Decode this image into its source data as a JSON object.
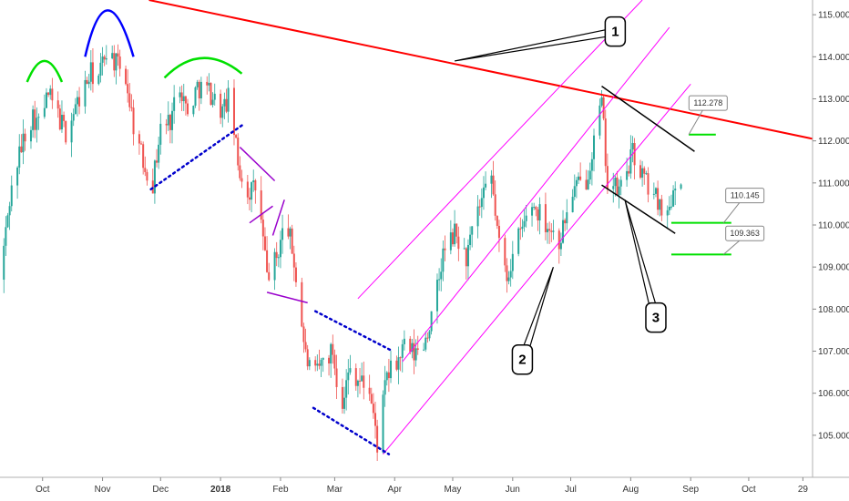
{
  "chart_data": {
    "type": "candlestick",
    "x_axis": {
      "ticks": [
        {
          "label": "Oct",
          "date": "2017-10-01",
          "bold": false
        },
        {
          "label": "Nov",
          "date": "2017-11-01",
          "bold": false
        },
        {
          "label": "Dec",
          "date": "2017-12-01",
          "bold": false
        },
        {
          "label": "2018",
          "date": "2018-01-01",
          "bold": true
        },
        {
          "label": "Feb",
          "date": "2018-02-01",
          "bold": false
        },
        {
          "label": "Mar",
          "date": "2018-03-01",
          "bold": false
        },
        {
          "label": "Apr",
          "date": "2018-04-01",
          "bold": false
        },
        {
          "label": "May",
          "date": "2018-05-01",
          "bold": false
        },
        {
          "label": "Jun",
          "date": "2018-06-01",
          "bold": false
        },
        {
          "label": "Jul",
          "date": "2018-07-01",
          "bold": false
        },
        {
          "label": "Aug",
          "date": "2018-08-01",
          "bold": false
        },
        {
          "label": "Sep",
          "date": "2018-09-01",
          "bold": false
        },
        {
          "label": "Oct",
          "date": "2018-10-01",
          "bold": false
        },
        {
          "label": "29",
          "date": "2018-10-29",
          "bold": false
        }
      ],
      "range": [
        "2017-09-09",
        "2018-11-03"
      ]
    },
    "y_axis": {
      "ticks": [
        "115.000",
        "114.000",
        "113.000",
        "112.000",
        "111.000",
        "110.000",
        "109.000",
        "108.000",
        "107.000",
        "106.000",
        "105.000"
      ],
      "range": [
        104.0,
        115.35
      ]
    },
    "price_path": [
      [
        "2017-09-09",
        108.7
      ],
      [
        "2017-09-14",
        110.6
      ],
      [
        "2017-09-18",
        111.5
      ],
      [
        "2017-09-22",
        112.2
      ],
      [
        "2017-09-26",
        112.6
      ],
      [
        "2017-09-29",
        112.4
      ],
      [
        "2017-10-04",
        113.1
      ],
      [
        "2017-10-09",
        112.6
      ],
      [
        "2017-10-13",
        112.2
      ],
      [
        "2017-10-18",
        112.8
      ],
      [
        "2017-10-23",
        113.3
      ],
      [
        "2017-10-26",
        113.6
      ],
      [
        "2017-10-30",
        113.5
      ],
      [
        "2017-11-03",
        114.2
      ],
      [
        "2017-11-07",
        113.9
      ],
      [
        "2017-11-13",
        113.5
      ],
      [
        "2017-11-17",
        112.4
      ],
      [
        "2017-11-22",
        111.5
      ],
      [
        "2017-11-27",
        111.0
      ],
      [
        "2017-12-01",
        112.3
      ],
      [
        "2017-12-06",
        112.5
      ],
      [
        "2017-12-11",
        113.4
      ],
      [
        "2017-12-15",
        112.6
      ],
      [
        "2017-12-20",
        113.3
      ],
      [
        "2017-12-26",
        113.2
      ],
      [
        "2018-01-02",
        112.7
      ],
      [
        "2018-01-06",
        113.1
      ],
      [
        "2018-01-10",
        111.4
      ],
      [
        "2018-01-15",
        110.8
      ],
      [
        "2018-01-20",
        110.9
      ],
      [
        "2018-01-25",
        108.8
      ],
      [
        "2018-01-30",
        109.2
      ],
      [
        "2018-02-04",
        110.2
      ],
      [
        "2018-02-08",
        109.1
      ],
      [
        "2018-02-14",
        106.9
      ],
      [
        "2018-02-18",
        106.3
      ],
      [
        "2018-02-23",
        106.8
      ],
      [
        "2018-02-28",
        107.0
      ],
      [
        "2018-03-04",
        105.7
      ],
      [
        "2018-03-09",
        106.6
      ],
      [
        "2018-03-14",
        106.3
      ],
      [
        "2018-03-19",
        106.1
      ],
      [
        "2018-03-23",
        104.8
      ],
      [
        "2018-03-28",
        106.4
      ],
      [
        "2018-04-02",
        106.7
      ],
      [
        "2018-04-06",
        107.1
      ],
      [
        "2018-04-11",
        106.9
      ],
      [
        "2018-04-16",
        107.2
      ],
      [
        "2018-04-21",
        107.9
      ],
      [
        "2018-04-26",
        109.3
      ],
      [
        "2018-05-02",
        109.8
      ],
      [
        "2018-05-08",
        109.2
      ],
      [
        "2018-05-14",
        110.3
      ],
      [
        "2018-05-21",
        111.1
      ],
      [
        "2018-05-25",
        109.5
      ],
      [
        "2018-05-29",
        108.8
      ],
      [
        "2018-06-04",
        109.7
      ],
      [
        "2018-06-11",
        110.5
      ],
      [
        "2018-06-18",
        110.1
      ],
      [
        "2018-06-25",
        109.6
      ],
      [
        "2018-07-02",
        110.8
      ],
      [
        "2018-07-09",
        111.1
      ],
      [
        "2018-07-17",
        112.9
      ],
      [
        "2018-07-20",
        111.0
      ],
      [
        "2018-07-26",
        110.8
      ],
      [
        "2018-08-02",
        111.7
      ],
      [
        "2018-08-08",
        111.1
      ],
      [
        "2018-08-13",
        110.7
      ],
      [
        "2018-08-17",
        110.5
      ],
      [
        "2018-08-20",
        110.2
      ],
      [
        "2018-08-24",
        111.1
      ],
      [
        "2018-08-27",
        111.2
      ]
    ],
    "annotations": {
      "callouts": [
        {
          "label": "1",
          "tip": [
            "2018-05-02",
            113.9
          ],
          "box": [
            "2018-07-24",
            114.6
          ]
        },
        {
          "label": "2",
          "tip": [
            "2018-06-22",
            109.0
          ],
          "box": [
            "2018-06-06",
            106.8
          ]
        },
        {
          "label": "3",
          "tip": [
            "2018-07-29",
            110.6
          ],
          "box": [
            "2018-08-14",
            107.8
          ]
        }
      ],
      "price_labels": [
        {
          "text": "112.278",
          "date": "2018-09-10",
          "price": 112.9
        },
        {
          "text": "110.145",
          "date": "2018-09-29",
          "price": 110.7
        },
        {
          "text": "109.363",
          "date": "2018-09-29",
          "price": 109.8
        }
      ],
      "colors": {
        "trendline": "#ff0000",
        "channel": "#ff00ff",
        "head": "#0000ff",
        "shoulders": "#00e000",
        "dotted": "#0000cc",
        "purple": "#9900cc",
        "black": "#000000",
        "level": "#00e000",
        "candle_up": "#26a69a",
        "candle_down": "#ef5350"
      }
    }
  }
}
